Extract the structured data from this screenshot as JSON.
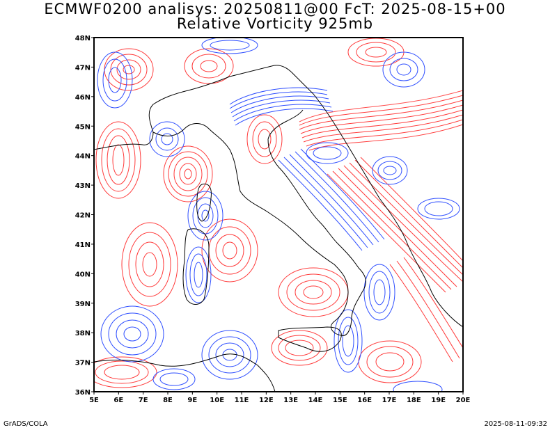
{
  "title_line1": "ECMWF0200 analisys: 20250811@00 FcT: 2025-08-15+00",
  "title_line2": "Relative Vorticity 925mb",
  "footer_left": "GrADS/COLA",
  "footer_right": "2025-08-11-09:32",
  "colors": {
    "positive": "#ff3b3b",
    "negative": "#2f4fff",
    "coast": "#000000"
  },
  "map": {
    "lon_range": [
      5,
      20
    ],
    "lat_range": [
      36,
      48
    ],
    "lon_ticks": [
      "5E",
      "6E",
      "7E",
      "8E",
      "9E",
      "10E",
      "11E",
      "12E",
      "13E",
      "14E",
      "15E",
      "16E",
      "17E",
      "18E",
      "19E",
      "20E"
    ],
    "lat_ticks": [
      "48N",
      "47N",
      "46N",
      "45N",
      "44N",
      "43N",
      "42N",
      "41N",
      "40N",
      "39N",
      "38N",
      "37N",
      "36N"
    ]
  }
}
